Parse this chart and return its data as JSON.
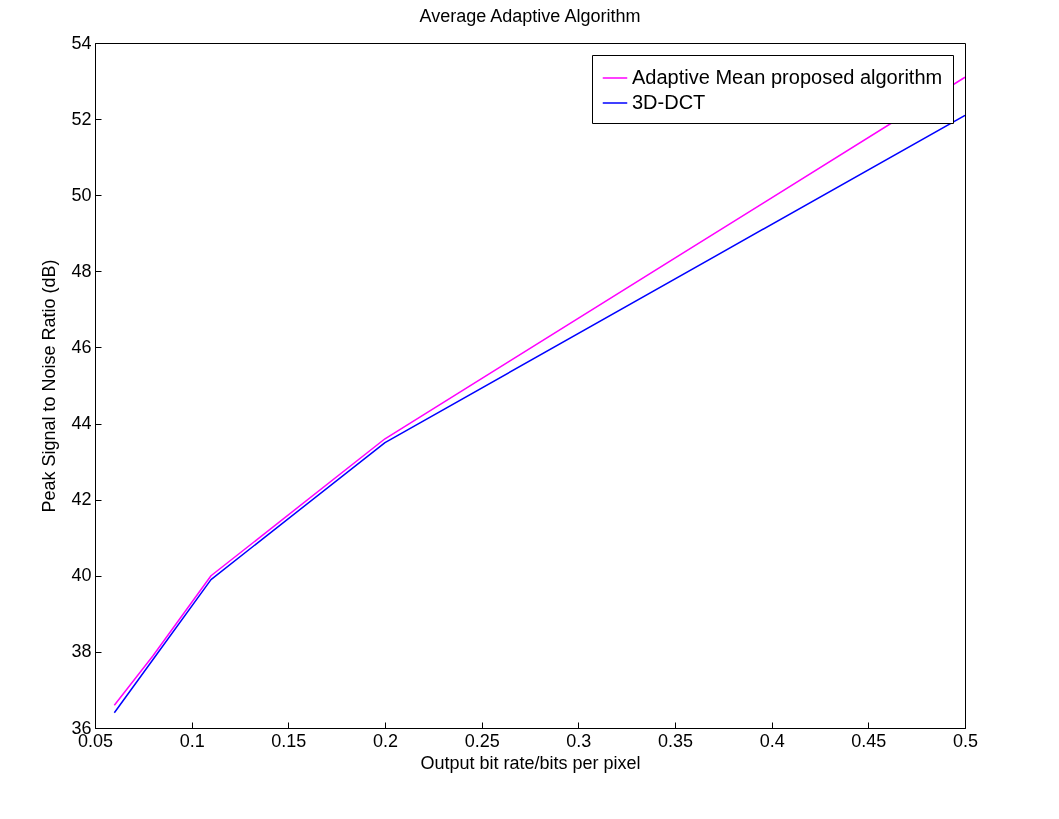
{
  "chart_data": {
    "type": "line",
    "title": "Average Adaptive Algorithm",
    "xlabel": "Output bit rate/bits per pixel",
    "ylabel": "Peak Signal to Noise Ratio (dB)",
    "x": [
      0.06,
      0.08,
      0.11,
      0.2,
      0.5
    ],
    "series": [
      {
        "name": "Adaptive Mean proposed algorithm",
        "color": "#ff00ff",
        "values": [
          36.6,
          37.9,
          40.0,
          43.6,
          53.1
        ]
      },
      {
        "name": "3D-DCT",
        "color": "#0000ff",
        "values": [
          36.4,
          37.8,
          39.9,
          43.5,
          52.1
        ]
      }
    ],
    "xlim": [
      0.05,
      0.5
    ],
    "xticks": [
      0.05,
      0.1,
      0.15,
      0.2,
      0.25,
      0.3,
      0.35,
      0.4,
      0.45,
      0.5
    ],
    "ylim": [
      36,
      54
    ],
    "yticks": [
      36,
      38,
      40,
      42,
      44,
      46,
      48,
      50,
      52,
      54
    ],
    "grid": false,
    "legend": "top right",
    "marker": "none",
    "line_style": "solid"
  }
}
